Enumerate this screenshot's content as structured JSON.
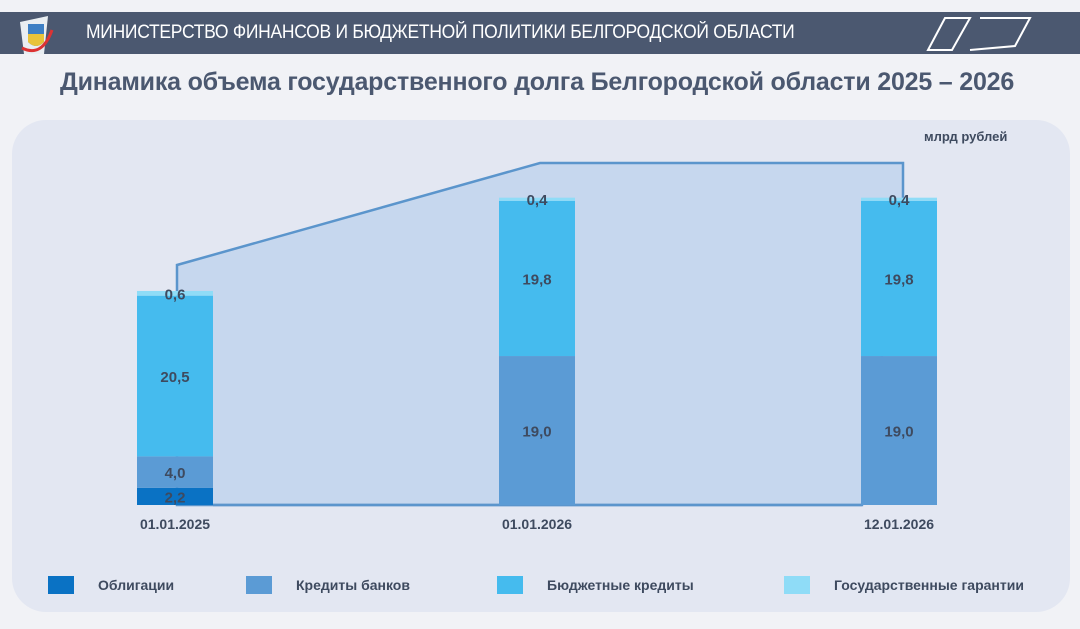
{
  "header": {
    "org": "МИНИСТЕРСТВО ФИНАНСОВ И БЮДЖЕТНОЙ ПОЛИТИКИ БЕЛГОРОДСКОЙ ОБЛАСТИ"
  },
  "chart_data": {
    "type": "bar",
    "stacked": true,
    "title": "Динамика объема государственного долга Белгородской области 2025 – 2026",
    "unit": "млрд рублей",
    "categories": [
      "01.01.2025",
      "01.01.2026",
      "12.01.2026"
    ],
    "series": [
      {
        "name": "Облигации",
        "color": "#0a72c4",
        "values": [
          2.2,
          0,
          0
        ],
        "labels": [
          "2,2",
          "",
          ""
        ]
      },
      {
        "name": "Кредиты банков",
        "color": "#5b9bd5",
        "values": [
          4.0,
          19.0,
          19.0
        ],
        "labels": [
          "4,0",
          "19,0",
          "19,0"
        ]
      },
      {
        "name": "Бюджетные кредиты",
        "color": "#45bbee",
        "values": [
          20.5,
          19.8,
          19.8
        ],
        "labels": [
          "20,5",
          "19,8",
          "19,8"
        ]
      },
      {
        "name": "Государственные гарантии",
        "color": "#8fdcf7",
        "values": [
          0.6,
          0.4,
          0.4
        ],
        "labels": [
          "0,6",
          "0,4",
          "0,4"
        ]
      }
    ],
    "legend": "bottom"
  }
}
